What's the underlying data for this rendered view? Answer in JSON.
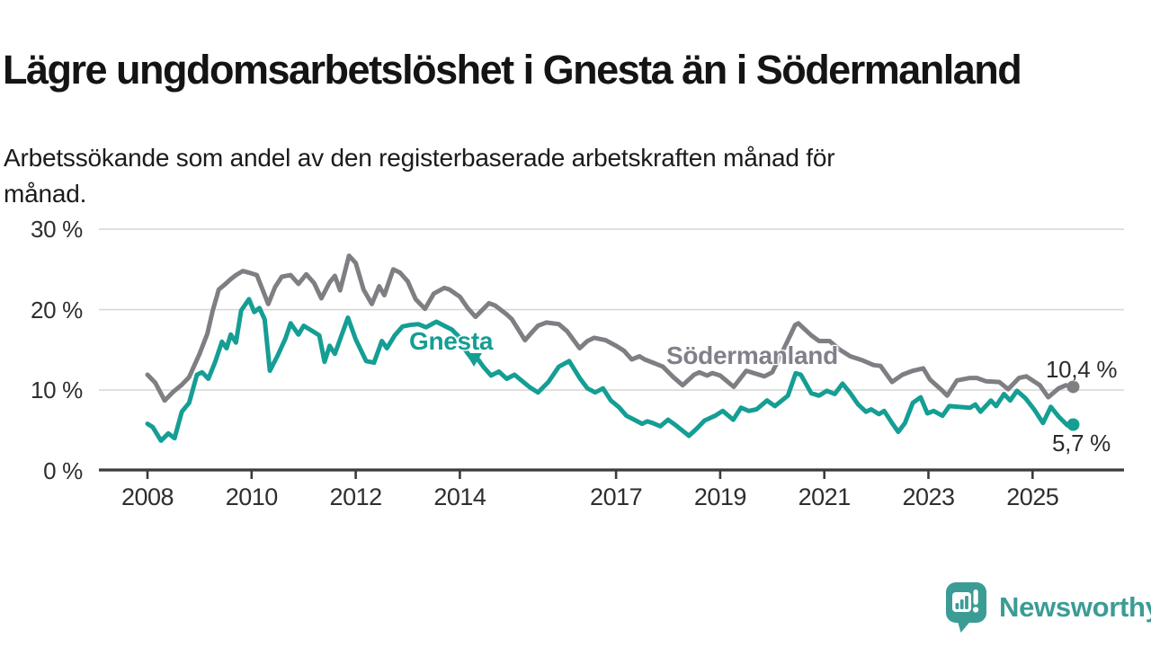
{
  "header": {
    "title": "Lägre ungdomsarbetslöshet i Gnesta än i Södermanland",
    "subtitle": "Arbetssökande som andel av den registerbaserade arbetskraften månad för\nmånad."
  },
  "footer": {
    "brand": "Newsworthy"
  },
  "colors": {
    "gnesta_line": "#149e94",
    "sodermanland_line": "#7e7e83",
    "gridline": "#d8d8d8",
    "axis": "#3b3b3b",
    "brand_teal": "#3b9c95"
  },
  "chart_data": {
    "type": "line",
    "title": "Lägre ungdomsarbetslöshet i Gnesta än i Södermanland",
    "subtitle": "Arbetssökande som andel av den registerbaserade arbetskraften månad för månad.",
    "xlabel": "",
    "ylabel": "",
    "unit": "%",
    "xlim": [
      2008,
      2025.9
    ],
    "ylim": [
      0,
      30
    ],
    "grid": true,
    "legend_position": "inline-labels",
    "y_ticks": [
      {
        "value": 30,
        "label": "30 %"
      },
      {
        "value": 20,
        "label": "20 %"
      },
      {
        "value": 10,
        "label": "10 %"
      },
      {
        "value": 0,
        "label": "0 %"
      }
    ],
    "x_ticks": [
      {
        "value": 2008,
        "label": "2008"
      },
      {
        "value": 2010,
        "label": "2010"
      },
      {
        "value": 2012,
        "label": "2012"
      },
      {
        "value": 2014,
        "label": "2014"
      },
      {
        "value": 2017,
        "label": "2017"
      },
      {
        "value": 2019,
        "label": "2019"
      },
      {
        "value": 2021,
        "label": "2021"
      },
      {
        "value": 2023,
        "label": "2023"
      },
      {
        "value": 2025,
        "label": "2025"
      }
    ],
    "annotations": {
      "gnesta_label": "Gnesta",
      "sodermanland_label": "Södermanland",
      "gnesta_end_label": "5,7 %",
      "sodermanland_end_label": "10,4 %"
    },
    "series": [
      {
        "name": "Södermanland",
        "color": "#7e7e83",
        "end_value": 10.4,
        "end_label": "10,4 %",
        "points": [
          [
            2008.0,
            11.9
          ],
          [
            2008.15,
            10.9
          ],
          [
            2008.33,
            8.7
          ],
          [
            2008.5,
            9.8
          ],
          [
            2008.65,
            10.6
          ],
          [
            2008.8,
            11.6
          ],
          [
            2009.0,
            14.5
          ],
          [
            2009.15,
            17.0
          ],
          [
            2009.25,
            19.8
          ],
          [
            2009.37,
            22.5
          ],
          [
            2009.5,
            23.2
          ],
          [
            2009.6,
            23.8
          ],
          [
            2009.7,
            24.3
          ],
          [
            2009.83,
            24.8
          ],
          [
            2009.95,
            24.6
          ],
          [
            2010.1,
            24.3
          ],
          [
            2010.32,
            20.7
          ],
          [
            2010.45,
            22.8
          ],
          [
            2010.58,
            24.1
          ],
          [
            2010.75,
            24.3
          ],
          [
            2010.9,
            23.2
          ],
          [
            2011.05,
            24.4
          ],
          [
            2011.2,
            23.3
          ],
          [
            2011.34,
            21.4
          ],
          [
            2011.5,
            23.4
          ],
          [
            2011.6,
            24.2
          ],
          [
            2011.7,
            22.4
          ],
          [
            2011.87,
            26.7
          ],
          [
            2012.0,
            25.8
          ],
          [
            2012.15,
            22.5
          ],
          [
            2012.31,
            20.7
          ],
          [
            2012.45,
            22.9
          ],
          [
            2012.55,
            21.8
          ],
          [
            2012.72,
            25.0
          ],
          [
            2012.85,
            24.6
          ],
          [
            2013.0,
            23.5
          ],
          [
            2013.15,
            21.3
          ],
          [
            2013.33,
            20.1
          ],
          [
            2013.5,
            22.0
          ],
          [
            2013.7,
            22.7
          ],
          [
            2013.8,
            22.5
          ],
          [
            2014.0,
            21.6
          ],
          [
            2014.15,
            20.2
          ],
          [
            2014.3,
            19.1
          ],
          [
            2014.56,
            20.8
          ],
          [
            2014.68,
            20.5
          ],
          [
            2014.9,
            19.4
          ],
          [
            2015.0,
            18.8
          ],
          [
            2015.25,
            16.2
          ],
          [
            2015.4,
            17.3
          ],
          [
            2015.5,
            18.0
          ],
          [
            2015.66,
            18.4
          ],
          [
            2015.9,
            18.2
          ],
          [
            2016.06,
            17.3
          ],
          [
            2016.3,
            15.2
          ],
          [
            2016.45,
            16.1
          ],
          [
            2016.58,
            16.5
          ],
          [
            2016.8,
            16.2
          ],
          [
            2017.0,
            15.5
          ],
          [
            2017.15,
            14.9
          ],
          [
            2017.3,
            13.8
          ],
          [
            2017.45,
            14.2
          ],
          [
            2017.55,
            13.8
          ],
          [
            2017.75,
            13.3
          ],
          [
            2017.9,
            12.9
          ],
          [
            2018.1,
            11.6
          ],
          [
            2018.28,
            10.6
          ],
          [
            2018.5,
            11.9
          ],
          [
            2018.6,
            12.2
          ],
          [
            2018.75,
            11.8
          ],
          [
            2018.85,
            12.1
          ],
          [
            2019.0,
            11.8
          ],
          [
            2019.26,
            10.4
          ],
          [
            2019.5,
            12.4
          ],
          [
            2019.7,
            12.0
          ],
          [
            2019.85,
            11.7
          ],
          [
            2020.0,
            12.2
          ],
          [
            2020.25,
            15.5
          ],
          [
            2020.44,
            18.1
          ],
          [
            2020.5,
            18.3
          ],
          [
            2020.65,
            17.4
          ],
          [
            2020.75,
            16.8
          ],
          [
            2020.9,
            16.1
          ],
          [
            2021.1,
            16.1
          ],
          [
            2021.3,
            15.0
          ],
          [
            2021.5,
            14.2
          ],
          [
            2021.73,
            13.7
          ],
          [
            2021.95,
            13.1
          ],
          [
            2022.08,
            13.0
          ],
          [
            2022.3,
            11.0
          ],
          [
            2022.5,
            11.9
          ],
          [
            2022.7,
            12.4
          ],
          [
            2022.9,
            12.7
          ],
          [
            2023.03,
            11.3
          ],
          [
            2023.27,
            9.9
          ],
          [
            2023.36,
            9.3
          ],
          [
            2023.55,
            11.2
          ],
          [
            2023.8,
            11.5
          ],
          [
            2023.93,
            11.5
          ],
          [
            2024.1,
            11.1
          ],
          [
            2024.36,
            11.0
          ],
          [
            2024.53,
            10.1
          ],
          [
            2024.74,
            11.5
          ],
          [
            2024.88,
            11.7
          ],
          [
            2025.14,
            10.6
          ],
          [
            2025.3,
            9.1
          ],
          [
            2025.5,
            10.2
          ],
          [
            2025.64,
            10.6
          ],
          [
            2025.78,
            10.4
          ]
        ]
      },
      {
        "name": "Gnesta",
        "color": "#149e94",
        "end_value": 5.7,
        "end_label": "5,7 %",
        "points": [
          [
            2008.0,
            5.8
          ],
          [
            2008.1,
            5.4
          ],
          [
            2008.26,
            3.7
          ],
          [
            2008.4,
            4.6
          ],
          [
            2008.52,
            4.0
          ],
          [
            2008.66,
            7.3
          ],
          [
            2008.8,
            8.4
          ],
          [
            2008.95,
            11.9
          ],
          [
            2009.05,
            12.2
          ],
          [
            2009.17,
            11.4
          ],
          [
            2009.3,
            13.5
          ],
          [
            2009.43,
            16.0
          ],
          [
            2009.52,
            15.2
          ],
          [
            2009.6,
            16.9
          ],
          [
            2009.7,
            15.9
          ],
          [
            2009.8,
            19.9
          ],
          [
            2009.95,
            21.3
          ],
          [
            2010.05,
            19.7
          ],
          [
            2010.15,
            20.2
          ],
          [
            2010.25,
            18.8
          ],
          [
            2010.35,
            12.4
          ],
          [
            2010.5,
            14.3
          ],
          [
            2010.65,
            16.4
          ],
          [
            2010.75,
            18.3
          ],
          [
            2010.9,
            16.9
          ],
          [
            2011.0,
            18.0
          ],
          [
            2011.15,
            17.4
          ],
          [
            2011.3,
            16.8
          ],
          [
            2011.4,
            13.5
          ],
          [
            2011.5,
            15.5
          ],
          [
            2011.6,
            14.5
          ],
          [
            2011.75,
            17.2
          ],
          [
            2011.85,
            19.0
          ],
          [
            2012.0,
            16.3
          ],
          [
            2012.2,
            13.6
          ],
          [
            2012.35,
            13.4
          ],
          [
            2012.5,
            16.1
          ],
          [
            2012.6,
            15.2
          ],
          [
            2012.75,
            16.8
          ],
          [
            2012.9,
            17.9
          ],
          [
            2013.05,
            18.1
          ],
          [
            2013.2,
            18.2
          ],
          [
            2013.35,
            17.8
          ],
          [
            2013.55,
            18.5
          ],
          [
            2013.7,
            18.0
          ],
          [
            2013.85,
            17.5
          ],
          [
            2014.0,
            16.5
          ],
          [
            2014.1,
            15.0
          ],
          [
            2014.25,
            13.7
          ],
          [
            2014.35,
            13.8
          ],
          [
            2014.45,
            12.9
          ],
          [
            2014.6,
            11.8
          ],
          [
            2014.75,
            12.3
          ],
          [
            2014.9,
            11.4
          ],
          [
            2015.05,
            11.9
          ],
          [
            2015.2,
            11.1
          ],
          [
            2015.35,
            10.3
          ],
          [
            2015.5,
            9.7
          ],
          [
            2015.7,
            11.0
          ],
          [
            2015.9,
            12.9
          ],
          [
            2016.1,
            13.6
          ],
          [
            2016.3,
            11.5
          ],
          [
            2016.45,
            10.2
          ],
          [
            2016.6,
            9.7
          ],
          [
            2016.75,
            10.2
          ],
          [
            2016.9,
            8.7
          ],
          [
            2017.05,
            7.9
          ],
          [
            2017.2,
            6.8
          ],
          [
            2017.35,
            6.3
          ],
          [
            2017.5,
            5.8
          ],
          [
            2017.6,
            6.1
          ],
          [
            2017.7,
            5.9
          ],
          [
            2017.85,
            5.5
          ],
          [
            2018.0,
            6.3
          ],
          [
            2018.15,
            5.6
          ],
          [
            2018.4,
            4.3
          ],
          [
            2018.55,
            5.2
          ],
          [
            2018.7,
            6.2
          ],
          [
            2018.9,
            6.8
          ],
          [
            2019.05,
            7.4
          ],
          [
            2019.25,
            6.3
          ],
          [
            2019.4,
            7.8
          ],
          [
            2019.55,
            7.4
          ],
          [
            2019.7,
            7.6
          ],
          [
            2019.9,
            8.7
          ],
          [
            2020.05,
            8.0
          ],
          [
            2020.3,
            9.3
          ],
          [
            2020.45,
            12.1
          ],
          [
            2020.55,
            11.9
          ],
          [
            2020.75,
            9.6
          ],
          [
            2020.9,
            9.3
          ],
          [
            2021.05,
            9.9
          ],
          [
            2021.2,
            9.5
          ],
          [
            2021.35,
            10.8
          ],
          [
            2021.5,
            9.6
          ],
          [
            2021.65,
            8.2
          ],
          [
            2021.8,
            7.3
          ],
          [
            2021.9,
            7.6
          ],
          [
            2022.05,
            7.0
          ],
          [
            2022.15,
            7.4
          ],
          [
            2022.3,
            5.9
          ],
          [
            2022.42,
            4.8
          ],
          [
            2022.55,
            5.9
          ],
          [
            2022.7,
            8.4
          ],
          [
            2022.85,
            9.1
          ],
          [
            2022.98,
            7.1
          ],
          [
            2023.1,
            7.4
          ],
          [
            2023.27,
            6.8
          ],
          [
            2023.4,
            8.0
          ],
          [
            2023.58,
            7.9
          ],
          [
            2023.8,
            7.8
          ],
          [
            2023.9,
            8.2
          ],
          [
            2024.0,
            7.3
          ],
          [
            2024.2,
            8.7
          ],
          [
            2024.3,
            8.0
          ],
          [
            2024.45,
            9.5
          ],
          [
            2024.57,
            8.7
          ],
          [
            2024.7,
            9.9
          ],
          [
            2024.86,
            9.0
          ],
          [
            2025.03,
            7.6
          ],
          [
            2025.2,
            5.9
          ],
          [
            2025.35,
            7.9
          ],
          [
            2025.5,
            6.7
          ],
          [
            2025.67,
            5.6
          ],
          [
            2025.78,
            5.7
          ]
        ]
      }
    ]
  }
}
